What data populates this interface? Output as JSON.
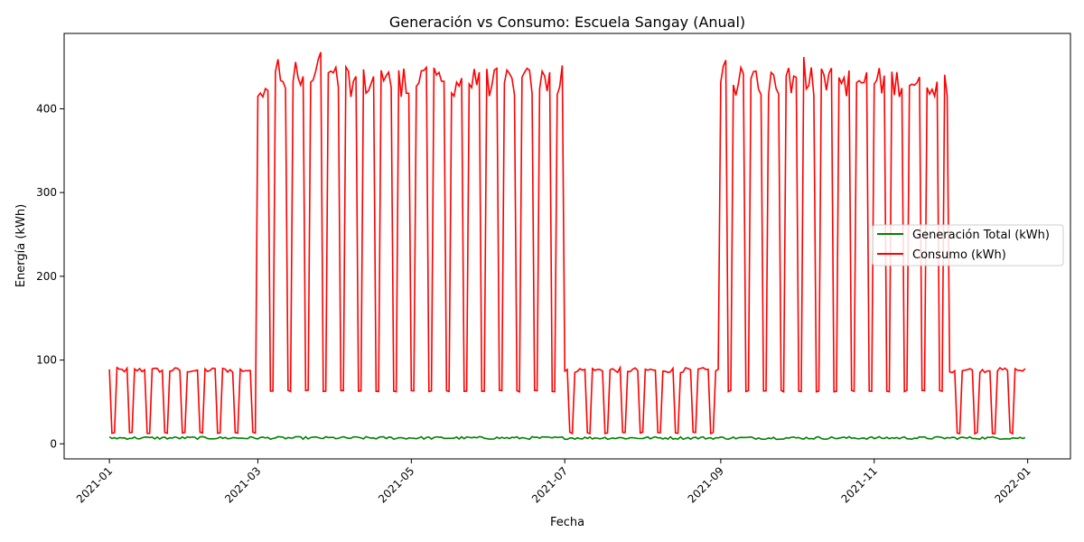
{
  "chart_data": {
    "type": "line",
    "title": "Generación vs Consumo: Escuela Sangay (Anual)",
    "xlabel": "Fecha",
    "ylabel": "Energía (kWh)",
    "x_range": [
      "2021-01-01",
      "2021-12-31"
    ],
    "x_ticks": [
      "2021-01",
      "2021-03",
      "2021-05",
      "2021-07",
      "2021-09",
      "2021-11",
      "2022-01"
    ],
    "ylim": [
      -18,
      490
    ],
    "y_ticks": [
      0,
      100,
      200,
      300,
      400
    ],
    "legend_position": "center-right",
    "grid": false,
    "series": [
      {
        "name": "Generación Total (kWh)",
        "color": "#008000",
        "pattern": "daily values between about 5 and 10 kWh",
        "weekday_mean": 7,
        "weekend_mean": 7
      },
      {
        "name": "Consumo (kWh)",
        "color": "#ff0000",
        "pattern": "weekdays high, weekends low",
        "periods": [
          {
            "start": "2021-01-01",
            "end": "2021-02-28",
            "weekday": 88,
            "weekend": 13
          },
          {
            "start": "2021-03-01",
            "end": "2021-06-30",
            "weekday": 432,
            "weekend": 63
          },
          {
            "start": "2021-07-01",
            "end": "2021-08-31",
            "weekday": 88,
            "weekend": 13
          },
          {
            "start": "2021-09-01",
            "end": "2021-11-30",
            "weekday": 432,
            "weekend": 63
          },
          {
            "start": "2021-12-01",
            "end": "2021-12-31",
            "weekday": 88,
            "weekend": 13
          }
        ]
      }
    ]
  }
}
